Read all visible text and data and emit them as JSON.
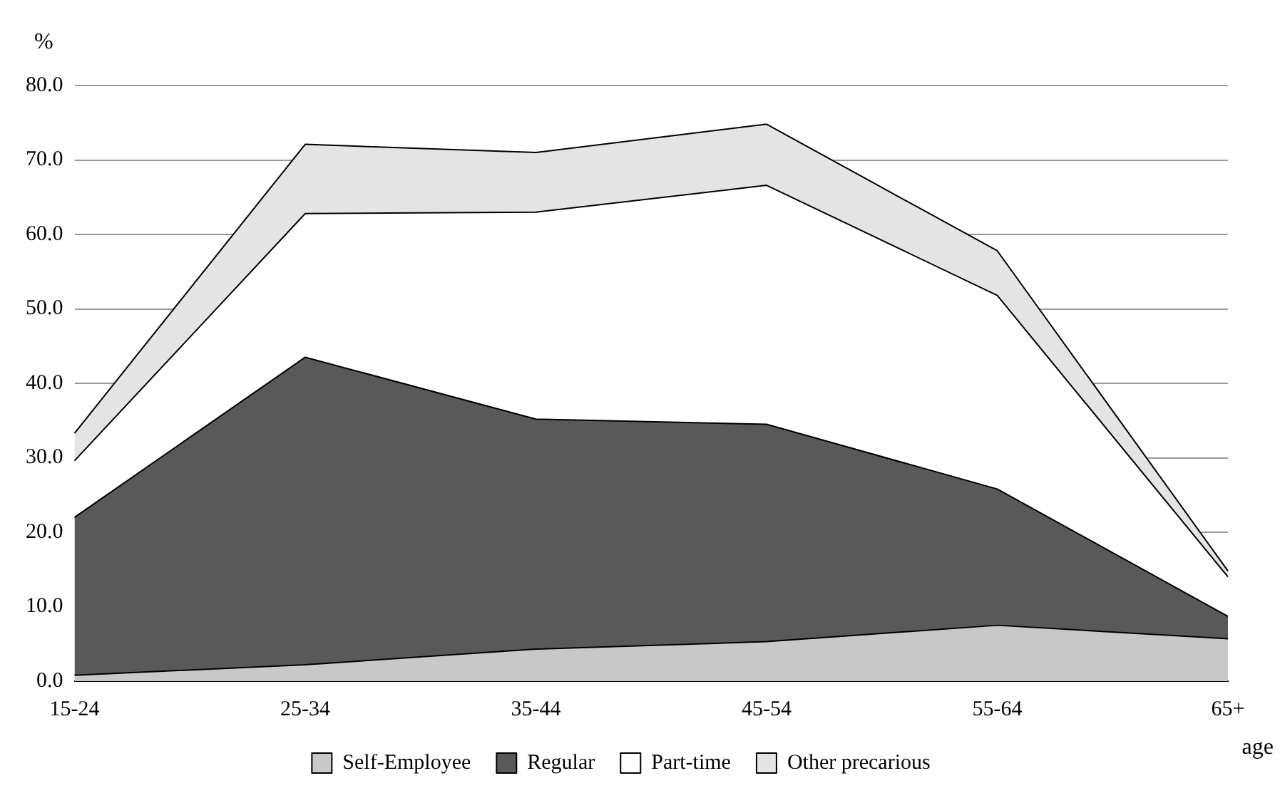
{
  "chart_data": {
    "type": "area",
    "stacked": true,
    "xlabel": "age",
    "ylabel": "%",
    "categories": [
      "15-24",
      "25-34",
      "35-44",
      "45-54",
      "55-64",
      "65+"
    ],
    "series": [
      {
        "name": "Self-Employee",
        "color": "#c8c8c8",
        "values": [
          0.8,
          2.2,
          4.3,
          5.3,
          7.5,
          5.7
        ]
      },
      {
        "name": "Regular",
        "color": "#595959",
        "values": [
          21.2,
          41.3,
          30.9,
          29.2,
          18.3,
          3.0
        ]
      },
      {
        "name": "Part-time",
        "color": "#ffffff",
        "values": [
          7.6,
          19.3,
          27.8,
          32.1,
          26.0,
          5.3
        ]
      },
      {
        "name": "Other precarious",
        "color": "#e4e4e4",
        "values": [
          3.7,
          9.3,
          8.0,
          8.2,
          6.0,
          0.8
        ]
      }
    ],
    "ylim": [
      0,
      80
    ],
    "yticks": [
      {
        "value": 0,
        "label": "0.0"
      },
      {
        "value": 10,
        "label": "10.0"
      },
      {
        "value": 20,
        "label": "20.0"
      },
      {
        "value": 30,
        "label": "30.0"
      },
      {
        "value": 40,
        "label": "40.0"
      },
      {
        "value": 50,
        "label": "50.0"
      },
      {
        "value": 60,
        "label": "60.0"
      },
      {
        "value": 70,
        "label": "70.0"
      },
      {
        "value": 80,
        "label": "80.0"
      }
    ],
    "grid": "y",
    "legend": "bottom"
  }
}
